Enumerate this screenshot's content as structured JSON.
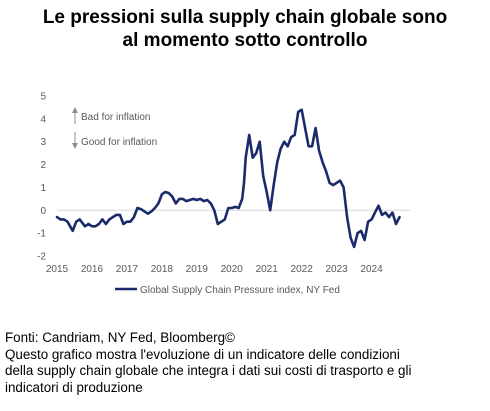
{
  "title": {
    "line1": "Le pressioni sulla supply chain globale sono",
    "line2": "al momento sotto controllo"
  },
  "footer": {
    "source": "Fonti: Candriam, NY Fed, Bloomberg©",
    "note_lines": [
      "Questo grafico mostra l'evoluzione di un indicatore delle condizioni",
      "della supply chain globale che integra i dati sui costi di trasporto e gli",
      "indicatori di produzione"
    ]
  },
  "colors": {
    "series": "#1b2a6b",
    "axis_text": "#595959",
    "arrow": "#8c8c8c",
    "zero_line": "#d9d9d9"
  },
  "chart_data": {
    "type": "line",
    "title": "",
    "xlabel": "",
    "ylabel": "",
    "ylim": [
      -2,
      5
    ],
    "yticks": [
      5,
      4,
      3,
      2,
      1,
      0,
      -1,
      -2
    ],
    "xlim": [
      2015.0,
      2025.1
    ],
    "xticks": [
      2015,
      2016,
      2017,
      2018,
      2019,
      2020,
      2021,
      2022,
      2023,
      2024
    ],
    "grid": false,
    "zero_line": true,
    "legend_position": "bottom",
    "annotations": [
      {
        "text": "Bad for inflation",
        "arrow": "up"
      },
      {
        "text": "Good for inflation",
        "arrow": "down"
      }
    ],
    "series": [
      {
        "name": "Global Supply Chain Pressure index, NY Fed",
        "x": [
          2015.0,
          2015.1,
          2015.2,
          2015.3,
          2015.45,
          2015.55,
          2015.65,
          2015.8,
          2015.9,
          2016.0,
          2016.1,
          2016.2,
          2016.3,
          2016.4,
          2016.5,
          2016.6,
          2016.7,
          2016.8,
          2016.9,
          2017.0,
          2017.1,
          2017.2,
          2017.3,
          2017.4,
          2017.5,
          2017.6,
          2017.7,
          2017.8,
          2017.9,
          2018.0,
          2018.1,
          2018.2,
          2018.3,
          2018.4,
          2018.5,
          2018.6,
          2018.7,
          2018.8,
          2018.9,
          2019.0,
          2019.1,
          2019.2,
          2019.3,
          2019.4,
          2019.5,
          2019.6,
          2019.7,
          2019.8,
          2019.9,
          2020.0,
          2020.1,
          2020.2,
          2020.3,
          2020.35,
          2020.4,
          2020.5,
          2020.6,
          2020.7,
          2020.8,
          2020.9,
          2021.0,
          2021.1,
          2021.2,
          2021.3,
          2021.4,
          2021.5,
          2021.6,
          2021.7,
          2021.8,
          2021.9,
          2022.0,
          2022.1,
          2022.2,
          2022.3,
          2022.4,
          2022.5,
          2022.6,
          2022.7,
          2022.8,
          2022.9,
          2023.0,
          2023.1,
          2023.2,
          2023.3,
          2023.4,
          2023.5,
          2023.6,
          2023.7,
          2023.8,
          2023.9,
          2024.0,
          2024.1,
          2024.2,
          2024.3,
          2024.4,
          2024.5,
          2024.6,
          2024.7,
          2024.8
        ],
        "y": [
          -0.3,
          -0.4,
          -0.4,
          -0.5,
          -0.9,
          -0.5,
          -0.4,
          -0.7,
          -0.6,
          -0.7,
          -0.7,
          -0.6,
          -0.4,
          -0.6,
          -0.4,
          -0.3,
          -0.2,
          -0.2,
          -0.6,
          -0.5,
          -0.5,
          -0.3,
          0.1,
          0.05,
          -0.05,
          -0.15,
          -0.05,
          0.1,
          0.3,
          0.7,
          0.8,
          0.75,
          0.6,
          0.3,
          0.5,
          0.5,
          0.4,
          0.45,
          0.5,
          0.45,
          0.5,
          0.4,
          0.45,
          0.3,
          0.0,
          -0.6,
          -0.5,
          -0.4,
          0.1,
          0.1,
          0.15,
          0.1,
          0.5,
          1.2,
          2.3,
          3.3,
          2.3,
          2.5,
          3.0,
          1.5,
          0.8,
          0.0,
          1.1,
          2.1,
          2.7,
          3.0,
          2.8,
          3.2,
          3.3,
          4.3,
          4.4,
          3.6,
          2.8,
          2.8,
          3.6,
          2.6,
          2.1,
          1.7,
          1.2,
          1.1,
          1.2,
          1.3,
          1.0,
          -0.3,
          -1.2,
          -1.6,
          -1.0,
          -0.9,
          -1.3,
          -0.5,
          -0.4,
          -0.1,
          0.2,
          -0.2,
          -0.1,
          -0.3,
          -0.1,
          -0.6,
          -0.3
        ]
      }
    ]
  }
}
